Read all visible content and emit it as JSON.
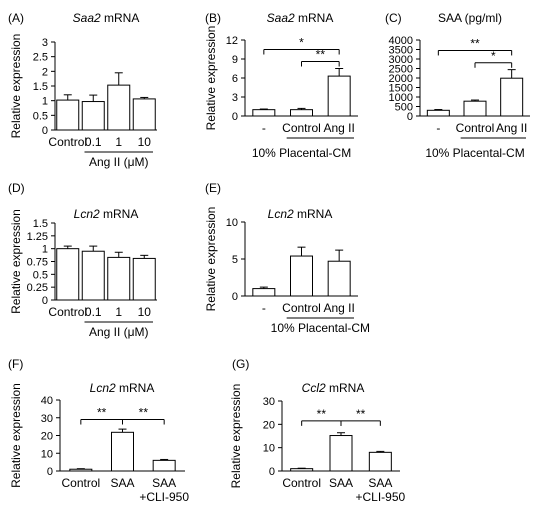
{
  "chart_data": [
    {
      "panel": "(A)",
      "type": "bar",
      "title_italic": "Saa2",
      "title_rest": " mRNA",
      "ylabel": "Relative expression",
      "ylim": [
        0,
        3
      ],
      "yticks": [
        "0",
        "0.5",
        "1",
        "1.5",
        "2",
        "2.5",
        "3"
      ],
      "categories": [
        "Control",
        "0.1",
        "1",
        "10"
      ],
      "values": [
        1.02,
        0.97,
        1.53,
        1.06
      ],
      "errors": [
        0.18,
        0.22,
        0.42,
        0.05
      ],
      "group": {
        "label": "Ang II (μM)",
        "from": 1,
        "to": 3
      },
      "significance": []
    },
    {
      "panel": "(B)",
      "type": "bar",
      "title_italic": "Saa2",
      "title_rest": " mRNA",
      "ylabel": "Relative expression",
      "ylim": [
        0,
        12
      ],
      "yticks": [
        "0",
        "3",
        "6",
        "9",
        "12"
      ],
      "categories": [
        "-",
        "Control",
        "Ang II"
      ],
      "values": [
        1.0,
        1.0,
        6.3
      ],
      "errors": [
        0.1,
        0.2,
        1.2
      ],
      "group": {
        "label": "",
        "from": 1,
        "to": 2
      },
      "footer": "10% Placental-CM",
      "significance": [
        {
          "from": 0,
          "to": 2,
          "label": "*",
          "level": 10.5
        },
        {
          "from": 1,
          "to": 2,
          "label": "**",
          "level": 8.6
        }
      ]
    },
    {
      "panel": "(C)",
      "type": "bar",
      "title_italic": "",
      "title_rest": "SAA (pg/ml)",
      "ylabel": "",
      "ylim": [
        0,
        4000
      ],
      "yticks": [
        "0",
        "500",
        "1000",
        "1500",
        "2000",
        "2500",
        "3000",
        "3500",
        "4000"
      ],
      "categories": [
        "-",
        "Control",
        "Ang II"
      ],
      "values": [
        300,
        780,
        1990
      ],
      "errors": [
        40,
        60,
        450
      ],
      "group": {
        "label": "",
        "from": 1,
        "to": 2
      },
      "footer": "10% Placental-CM",
      "significance": [
        {
          "from": 0,
          "to": 2,
          "label": "**",
          "level": 3450
        },
        {
          "from": 1,
          "to": 2,
          "label": "*",
          "level": 2800
        }
      ]
    },
    {
      "panel": "(D)",
      "type": "bar",
      "title_italic": "Lcn2",
      "title_rest": " mRNA",
      "ylabel": "Relative expression",
      "ylim": [
        0,
        1.5
      ],
      "yticks": [
        "0",
        "0.25",
        "0.5",
        "0.75",
        "1",
        "1.25",
        "1.5"
      ],
      "categories": [
        "Control",
        "0.1",
        "1",
        "10"
      ],
      "values": [
        1.0,
        0.95,
        0.83,
        0.81
      ],
      "errors": [
        0.05,
        0.1,
        0.1,
        0.06
      ],
      "group": {
        "label": "Ang II (μM)",
        "from": 1,
        "to": 3
      },
      "significance": []
    },
    {
      "panel": "(E)",
      "type": "bar",
      "title_italic": "Lcn2",
      "title_rest": " mRNA",
      "ylabel": "Relative expression",
      "ylim": [
        0,
        10
      ],
      "yticks": [
        "0",
        "5",
        "10"
      ],
      "categories": [
        "-",
        "Control",
        "Ang II"
      ],
      "values": [
        1.0,
        5.4,
        4.7
      ],
      "errors": [
        0.2,
        1.2,
        1.5
      ],
      "group": {
        "label": "10% Placental-CM",
        "from": 1,
        "to": 2
      },
      "significance": []
    },
    {
      "panel": "(F)",
      "type": "bar",
      "title_italic": "Lcn2",
      "title_rest": " mRNA",
      "ylabel": "Relative expression",
      "ylim": [
        0,
        40
      ],
      "yticks": [
        "0",
        "10",
        "20",
        "30",
        "40"
      ],
      "categories": [
        "Control",
        "SAA",
        "SAA\n+CLI-950"
      ],
      "values": [
        1.0,
        21.8,
        6.0
      ],
      "errors": [
        0.3,
        1.8,
        0.5
      ],
      "group": null,
      "significance": [
        {
          "from": 0,
          "to": 1,
          "label": "**",
          "level": 29
        },
        {
          "from": 1,
          "to": 2,
          "label": "**",
          "level": 29
        }
      ]
    },
    {
      "panel": "(G)",
      "type": "bar",
      "title_italic": "Ccl2",
      "title_rest": " mRNA",
      "ylabel": "Relative expression",
      "ylim": [
        0,
        30
      ],
      "yticks": [
        "0",
        "10",
        "20",
        "30"
      ],
      "categories": [
        "Control",
        "SAA",
        "SAA\n+CLI-950"
      ],
      "values": [
        1.0,
        15.2,
        8.0
      ],
      "errors": [
        0.2,
        1.2,
        0.4
      ],
      "group": null,
      "significance": [
        {
          "from": 0,
          "to": 1,
          "label": "**",
          "level": 21.5
        },
        {
          "from": 1,
          "to": 2,
          "label": "**",
          "level": 21.5
        }
      ]
    }
  ]
}
